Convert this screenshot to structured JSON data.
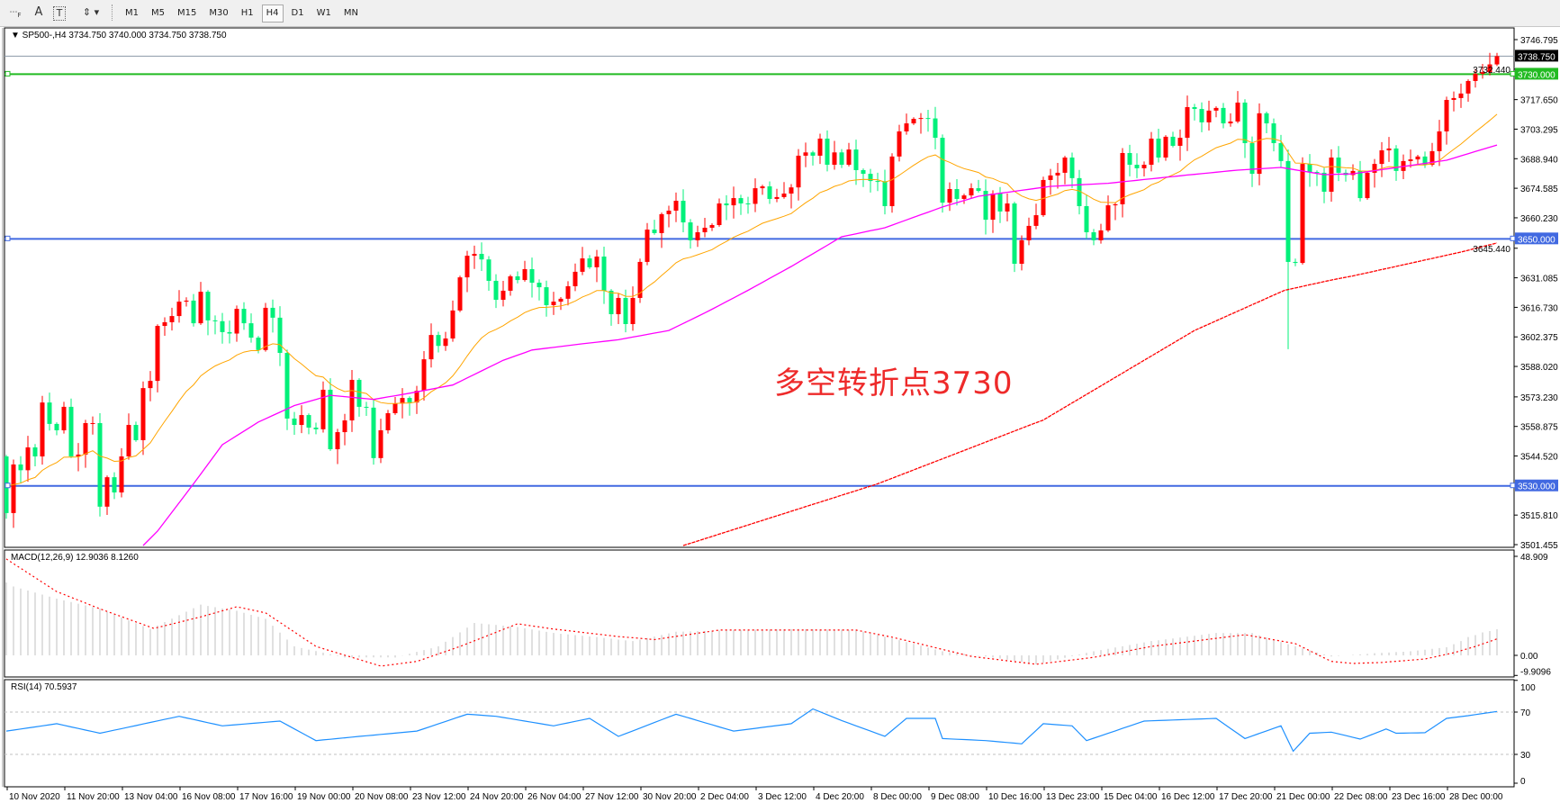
{
  "toolbar": {
    "tools": [
      {
        "icon": "grid-f-icon",
        "label": ""
      },
      {
        "icon": "text-icon",
        "label": "A"
      },
      {
        "icon": "text-label-icon",
        "label": "T"
      },
      {
        "icon": "arrows-icon",
        "label": ""
      }
    ],
    "timeframes": [
      "M1",
      "M5",
      "M15",
      "M30",
      "H1",
      "H4",
      "D1",
      "W1",
      "MN"
    ],
    "selected_timeframe": "H4"
  },
  "chart": {
    "header": "▼ SP500-,H4  3734.750 3740.000 3734.750 3738.750",
    "annotation": "多空转折点3730",
    "macd_label": "MACD(12,26,9) 12.9036 8.1260",
    "rsi_label": "RSI(14) 70.5937"
  },
  "colors": {
    "bull": "#ff0000",
    "bear": "#00f07a",
    "ma_fast": "#ffa500",
    "ma_mid": "#ff00ff",
    "ma_slow": "#ff0000",
    "level_green": "#22bb22",
    "level_blue": "#4169e1",
    "rsi": "#1e90ff",
    "macd_hist": "#c0c0c0",
    "macd_signal": "#ff0000"
  },
  "chart_data": {
    "type": "candlestick",
    "symbol": "SP500-",
    "timeframe": "H4",
    "ylim": [
      3501.455,
      3746.795
    ],
    "price_ticks": [
      "3746.795",
      "3732.440",
      "3717.650",
      "3703.295",
      "3688.940",
      "3674.585",
      "3660.230",
      "3645.440",
      "3631.085",
      "3616.730",
      "3602.375",
      "3588.020",
      "3573.230",
      "3558.875",
      "3544.520",
      "3515.810",
      "3501.455"
    ],
    "current_price": {
      "value": 3738.75,
      "label": "3738.750"
    },
    "levels": [
      {
        "value": 3730,
        "label": "3730.000",
        "color": "#22bb22"
      },
      {
        "value": 3650,
        "label": "3650.000",
        "color": "#4169e1"
      },
      {
        "value": 3530,
        "label": "3530.000",
        "color": "#4169e1"
      }
    ],
    "time_labels": [
      "10 Nov 2020",
      "11 Nov 20:00",
      "13 Nov 04:00",
      "16 Nov 08:00",
      "17 Nov 16:00",
      "19 Nov 00:00",
      "20 Nov 08:00",
      "23 Nov 12:00",
      "24 Nov 20:00",
      "26 Nov 04:00",
      "27 Nov 12:00",
      "30 Nov 20:00",
      "2 Dec 04:00",
      "3 Dec 12:00",
      "4 Dec 20:00",
      "8 Dec 00:00",
      "9 Dec 08:00",
      "10 Dec 16:00",
      "13 Dec 23:00",
      "15 Dec 04:00",
      "16 Dec 12:00",
      "17 Dec 20:00",
      "21 Dec 00:00",
      "22 Dec 08:00",
      "23 Dec 16:00",
      "28 Dec 00:00"
    ],
    "first_open": 3544.3,
    "closes": [
      3516.8,
      3540.4,
      3537.6,
      3548.7,
      3544.3,
      3570.5,
      3560.1,
      3557.0,
      3568.4,
      3544.3,
      3545.2,
      3560.5,
      3560.5,
      3519.9,
      3534.2,
      3526.8,
      3544.3,
      3559.6,
      3552.2,
      3577.5,
      3581.0,
      3607.7,
      3609.5,
      3612.5,
      3619.5,
      3620.0,
      3609.0,
      3624.3,
      3610.4,
      3610.0,
      3604.7,
      3604.0,
      3616.0,
      3609.0,
      3602.0,
      3596.0,
      3616.5,
      3611.7,
      3594.6,
      3562.7,
      3559.6,
      3564.4,
      3558.3,
      3557.5,
      3576.7,
      3547.8,
      3556.1,
      3561.8,
      3581.5,
      3568.4,
      3568.0,
      3543.5,
      3557.0,
      3565.3,
      3570.0,
      3572.7,
      3570.5,
      3576.2,
      3591.5,
      3603.3,
      3598.0,
      3601.6,
      3615.2,
      3631.3,
      3641.8,
      3642.7,
      3640.0,
      3629.6,
      3620.4,
      3624.8,
      3631.8,
      3630.0,
      3635.3,
      3628.7,
      3626.5,
      3617.8,
      3619.5,
      3620.9,
      3627.0,
      3634.0,
      3640.5,
      3636.2,
      3641.4,
      3624.8,
      3613.4,
      3621.3,
      3608.6,
      3621.3,
      3638.8,
      3654.5,
      3652.8,
      3662.0,
      3663.7,
      3668.5,
      3658.0,
      3649.3,
      3653.2,
      3655.4,
      3656.7,
      3667.2,
      3666.3,
      3669.8,
      3667.2,
      3667.0,
      3674.6,
      3675.5,
      3669.4,
      3670.3,
      3672.0,
      3675.0,
      3690.4,
      3692.0,
      3690.4,
      3698.7,
      3686.0,
      3692.0,
      3686.0,
      3693.4,
      3683.4,
      3681.6,
      3678.1,
      3678.0,
      3665.9,
      3690.0,
      3702.2,
      3706.1,
      3708.3,
      3708.7,
      3708.5,
      3699.1,
      3667.6,
      3674.2,
      3669.4,
      3671.1,
      3674.6,
      3673.3,
      3659.3,
      3672.0,
      3663.3,
      3667.2,
      3637.9,
      3649.3,
      3656.3,
      3661.5,
      3678.6,
      3680.8,
      3682.1,
      3689.5,
      3679.5,
      3665.9,
      3653.2,
      3649.3,
      3654.1,
      3666.3,
      3666.8,
      3691.7,
      3686.0,
      3684.3,
      3686.0,
      3698.7,
      3689.5,
      3699.6,
      3695.2,
      3699.1,
      3714.0,
      3713.1,
      3706.6,
      3712.3,
      3713.6,
      3706.1,
      3707.0,
      3716.2,
      3696.5,
      3681.6,
      3711.0,
      3706.1,
      3696.5,
      3687.8,
      3638.8,
      3638.3,
      3686.4,
      3682.5,
      3682.1,
      3672.9,
      3689.5,
      3682.1,
      3681.0,
      3683.0,
      3669.8,
      3682.1,
      3686.4,
      3693.0,
      3693.9,
      3683.0,
      3687.8,
      3688.6,
      3690.0,
      3686.0,
      3692.6,
      3702.2,
      3717.5,
      3718.4,
      3720.6,
      3726.7,
      3730.2,
      3731.0,
      3734.75,
      3738.75
    ],
    "ma_mid": [
      [
        19,
        3501
      ],
      [
        21,
        3508
      ],
      [
        26,
        3531
      ],
      [
        30,
        3550
      ],
      [
        35,
        3561
      ],
      [
        40,
        3569
      ],
      [
        45,
        3574
      ],
      [
        51,
        3572
      ],
      [
        56,
        3575
      ],
      [
        62,
        3579
      ],
      [
        69,
        3591
      ],
      [
        73,
        3596
      ],
      [
        80,
        3599
      ],
      [
        85,
        3601
      ],
      [
        92,
        3605.5
      ],
      [
        97,
        3614
      ],
      [
        103,
        3625
      ],
      [
        109,
        3636.6
      ],
      [
        116,
        3651
      ],
      [
        122,
        3655.4
      ],
      [
        130,
        3665.5
      ],
      [
        135,
        3670.7
      ],
      [
        145,
        3675.5
      ],
      [
        153,
        3677
      ],
      [
        164,
        3681
      ],
      [
        171,
        3683.4
      ],
      [
        177,
        3684.7
      ],
      [
        183,
        3681.2
      ],
      [
        187,
        3681.6
      ],
      [
        200,
        3688.2
      ],
      [
        207,
        3695.6
      ]
    ],
    "ma_slow": [
      [
        94,
        3501
      ],
      [
        121,
        3531
      ],
      [
        141,
        3558
      ],
      [
        144,
        3562
      ],
      [
        165,
        3605.5
      ],
      [
        177.5,
        3625
      ],
      [
        184,
        3630
      ],
      [
        187,
        3632
      ],
      [
        198,
        3640.5
      ],
      [
        202,
        3643.6
      ],
      [
        207,
        3648
      ]
    ],
    "macd": {
      "ylim": [
        -9.9096,
        48.909
      ],
      "tick_labels": [
        "48.909",
        "0.00",
        "-9.9096"
      ],
      "histogram": [
        [
          0,
          36
        ],
        [
          1,
          34
        ],
        [
          7,
          28
        ],
        [
          13,
          23
        ],
        [
          20,
          13
        ],
        [
          27,
          25
        ],
        [
          32,
          22
        ],
        [
          36,
          18
        ],
        [
          40,
          4.4
        ],
        [
          47,
          -1
        ],
        [
          54,
          -1
        ],
        [
          60,
          4.4
        ],
        [
          65,
          16
        ],
        [
          71,
          14
        ],
        [
          76,
          11
        ],
        [
          82,
          9
        ],
        [
          87,
          7
        ],
        [
          93,
          11.6
        ],
        [
          101,
          12.5
        ],
        [
          110,
          13
        ],
        [
          118,
          12.5
        ],
        [
          123,
          8.4
        ],
        [
          130,
          2
        ],
        [
          137,
          -1
        ],
        [
          143,
          -4.4
        ],
        [
          151,
          2
        ],
        [
          159,
          7
        ],
        [
          168,
          11
        ],
        [
          173,
          11
        ],
        [
          179,
          4.4
        ],
        [
          184,
          -0.5
        ],
        [
          190,
          1
        ],
        [
          195,
          2
        ],
        [
          200,
          4
        ],
        [
          202,
          7
        ],
        [
          203,
          9
        ],
        [
          204,
          10
        ],
        [
          205,
          11.3
        ],
        [
          206,
          12
        ],
        [
          207,
          12.9036
        ]
      ],
      "signal": [
        [
          0,
          47.6
        ],
        [
          7,
          31.5
        ],
        [
          13,
          23
        ],
        [
          20.5,
          13.3
        ],
        [
          27,
          19
        ],
        [
          32,
          24
        ],
        [
          36,
          21
        ],
        [
          43,
          4.4
        ],
        [
          52,
          -5.3
        ],
        [
          57,
          -3
        ],
        [
          63,
          4.4
        ],
        [
          71,
          15.6
        ],
        [
          76,
          13
        ],
        [
          85,
          9.3
        ],
        [
          90,
          7.8
        ],
        [
          99,
          12.5
        ],
        [
          118,
          12.5
        ],
        [
          123,
          9
        ],
        [
          134,
          -0.5
        ],
        [
          143,
          -4.4
        ],
        [
          151,
          -1
        ],
        [
          159,
          4.4
        ],
        [
          172,
          10.2
        ],
        [
          179,
          5.8
        ],
        [
          184,
          -3
        ],
        [
          187,
          -4
        ],
        [
          191,
          -3.5
        ],
        [
          197,
          -1.8
        ],
        [
          201,
          1.3
        ],
        [
          204,
          4.4
        ],
        [
          207,
          8.126
        ]
      ]
    },
    "rsi": {
      "ylim": [
        0,
        100
      ],
      "tick_labels": [
        "100",
        "70",
        "30",
        "0"
      ],
      "levels": [
        70,
        30
      ],
      "values": [
        [
          0,
          52
        ],
        [
          7,
          59
        ],
        [
          13,
          50
        ],
        [
          24,
          66
        ],
        [
          30,
          57
        ],
        [
          38,
          61.5
        ],
        [
          43,
          43
        ],
        [
          49,
          47
        ],
        [
          57,
          52
        ],
        [
          64,
          68
        ],
        [
          68,
          66
        ],
        [
          76,
          57
        ],
        [
          81,
          64
        ],
        [
          85,
          47
        ],
        [
          93,
          68
        ],
        [
          101,
          52
        ],
        [
          109,
          59
        ],
        [
          112,
          73
        ],
        [
          116,
          62
        ],
        [
          122,
          47
        ],
        [
          125,
          64
        ],
        [
          129,
          64
        ],
        [
          130,
          45
        ],
        [
          136,
          43
        ],
        [
          141,
          40
        ],
        [
          144,
          59
        ],
        [
          148,
          57
        ],
        [
          150,
          43
        ],
        [
          158,
          61.5
        ],
        [
          168,
          64
        ],
        [
          172,
          45
        ],
        [
          177,
          57
        ],
        [
          178.7,
          33
        ],
        [
          181,
          50
        ],
        [
          184,
          51
        ],
        [
          188,
          44.5
        ],
        [
          191.6,
          54
        ],
        [
          193,
          50
        ],
        [
          197,
          50.5
        ],
        [
          200,
          64
        ],
        [
          203,
          66.6
        ],
        [
          207,
          70.5937
        ]
      ]
    }
  }
}
